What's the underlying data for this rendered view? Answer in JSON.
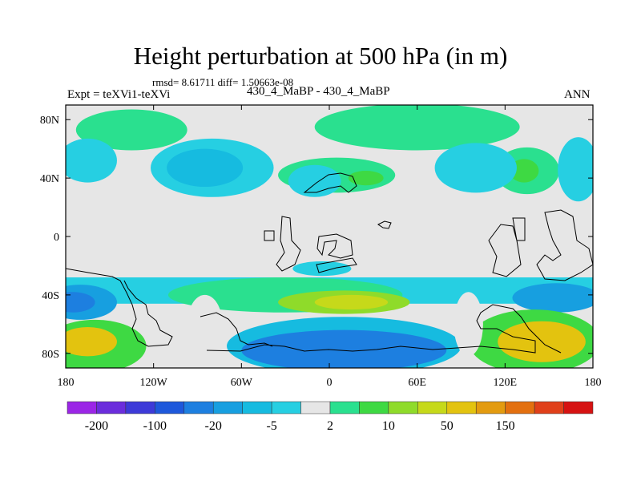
{
  "chart_data": {
    "type": "heatmap",
    "title": "Height perturbation at 500 hPa (in m)",
    "stats": "rmsd= 8.61711  diff= 1.50663e-08",
    "experiment": "Expt = teXVi1-teXVi",
    "case": "430_4_MaBP - 430_4_MaBP",
    "season": "ANN",
    "variable": "Height perturbation",
    "level_hpa": 500,
    "units": "m",
    "xlim": [
      -180,
      180
    ],
    "ylim": [
      -90,
      90
    ],
    "x_ticks": [
      {
        "value": -180,
        "label": "180"
      },
      {
        "value": -120,
        "label": "120W"
      },
      {
        "value": -60,
        "label": "60W"
      },
      {
        "value": 0,
        "label": "0"
      },
      {
        "value": 60,
        "label": "60E"
      },
      {
        "value": 120,
        "label": "120E"
      },
      {
        "value": 180,
        "label": "180"
      }
    ],
    "y_ticks": [
      {
        "value": 80,
        "label": "80N"
      },
      {
        "value": 40,
        "label": "40N"
      },
      {
        "value": 0,
        "label": "0"
      },
      {
        "value": -40,
        "label": "40S"
      },
      {
        "value": -80,
        "label": "80S"
      }
    ],
    "colorbar": {
      "colors": [
        "#9b26e6",
        "#6b2ddc",
        "#3d3ad8",
        "#1e58db",
        "#1d7fe0",
        "#179fe0",
        "#16bbe0",
        "#26cfe2",
        "#e6e6e6",
        "#2ae08f",
        "#3ed943",
        "#8fdb2a",
        "#c6d91a",
        "#e3c30f",
        "#e39b0f",
        "#e3700f",
        "#e0401a",
        "#d61212"
      ],
      "labels": [
        {
          "boundary": 1,
          "label": "-200"
        },
        {
          "boundary": 3,
          "label": "-100"
        },
        {
          "boundary": 5,
          "label": "-20"
        },
        {
          "boundary": 7,
          "label": "-5"
        },
        {
          "boundary": 9,
          "label": "2"
        },
        {
          "boundary": 11,
          "label": "10"
        },
        {
          "boundary": 13,
          "label": "50"
        },
        {
          "boundary": 15,
          "label": "150"
        }
      ]
    },
    "regions": [
      {
        "name": "nh-band",
        "level": 8,
        "lon": -180,
        "lat": 90,
        "lon2": 180,
        "lat2": -18
      },
      {
        "name": "tropical-band",
        "level": 8,
        "lon": -180,
        "lat": 10,
        "lon2": 180,
        "lat2": -25
      },
      {
        "name": "nh-pos-1",
        "level": 9,
        "lon": -135,
        "lat": 73,
        "rx": 38,
        "ry": 14
      },
      {
        "name": "nh-pos-2",
        "level": 9,
        "lon": 60,
        "lat": 75,
        "rx": 70,
        "ry": 16
      },
      {
        "name": "nh-pos-3",
        "level": 9,
        "lon": 5,
        "lat": 42,
        "rx": 40,
        "ry": 12
      },
      {
        "name": "nh-pos-4",
        "level": 10,
        "lon": 25,
        "lat": 40,
        "rx": 12,
        "ry": 5
      },
      {
        "name": "nh-pos-5",
        "level": 9,
        "lon": 135,
        "lat": 45,
        "rx": 22,
        "ry": 16
      },
      {
        "name": "nh-pos-6",
        "level": 10,
        "lon": 133,
        "lat": 45,
        "rx": 10,
        "ry": 8
      },
      {
        "name": "nh-neg-1",
        "level": 7,
        "lon": -80,
        "lat": 47,
        "rx": 42,
        "ry": 20
      },
      {
        "name": "nh-neg-2",
        "level": 6,
        "lon": -85,
        "lat": 47,
        "rx": 26,
        "ry": 13
      },
      {
        "name": "nh-neg-3",
        "level": 7,
        "lon": -165,
        "lat": 52,
        "rx": 20,
        "ry": 15
      },
      {
        "name": "nh-neg-4",
        "level": 7,
        "lon": -10,
        "lat": 38,
        "rx": 18,
        "ry": 11
      },
      {
        "name": "nh-neg-5",
        "level": 7,
        "lon": 100,
        "lat": 47,
        "rx": 28,
        "ry": 17
      },
      {
        "name": "nh-neg-6",
        "level": 7,
        "lon": 170,
        "lat": 46,
        "rx": 14,
        "ry": 22
      },
      {
        "name": "nh-neg-7",
        "level": 7,
        "lon": -5,
        "lat": -22,
        "rx": 20,
        "ry": 5
      },
      {
        "name": "sh-neg-band",
        "level": 7,
        "lon": -180,
        "lat": -28,
        "lon2": 180,
        "lat2": -46
      },
      {
        "name": "sh-pos-band",
        "level": 9,
        "lon": -30,
        "lat": -40,
        "rx": 80,
        "ry": 12
      },
      {
        "name": "sh-pos-center",
        "level": 11,
        "lon": 10,
        "lat": -45,
        "rx": 45,
        "ry": 8
      },
      {
        "name": "sh-pos-core",
        "level": 12,
        "lon": 15,
        "lat": -45,
        "rx": 25,
        "ry": 5
      },
      {
        "name": "sh-neg-west",
        "level": 5,
        "lon": -170,
        "lat": -45,
        "rx": 25,
        "ry": 12
      },
      {
        "name": "sh-neg-west-core",
        "level": 4,
        "lon": -175,
        "lat": -45,
        "rx": 15,
        "ry": 7
      },
      {
        "name": "sh-neg-east",
        "level": 5,
        "lon": 155,
        "lat": -42,
        "rx": 30,
        "ry": 10
      },
      {
        "name": "sh-neg-south",
        "level": 6,
        "lon": 10,
        "lat": -75,
        "rx": 80,
        "ry": 20
      },
      {
        "name": "sh-neg-south-core",
        "level": 4,
        "lon": 10,
        "lat": -78,
        "rx": 70,
        "ry": 14
      },
      {
        "name": "sh-pos-south-west",
        "level": 10,
        "lon": -160,
        "lat": -75,
        "rx": 35,
        "ry": 18
      },
      {
        "name": "sh-pos-south-west-core",
        "level": 13,
        "lon": -165,
        "lat": -72,
        "rx": 20,
        "ry": 10
      },
      {
        "name": "sh-pos-south-east",
        "level": 10,
        "lon": 140,
        "lat": -72,
        "rx": 45,
        "ry": 22
      },
      {
        "name": "sh-pos-south-east-core",
        "level": 13,
        "lon": 145,
        "lat": -72,
        "rx": 30,
        "ry": 14
      },
      {
        "name": "sh-white-gap",
        "level": 8,
        "lon": -85,
        "lat": -60,
        "rx": 12,
        "ry": 20
      },
      {
        "name": "sh-white-gap-2",
        "level": 8,
        "lon": 95,
        "lat": -60,
        "rx": 10,
        "ry": 22
      }
    ]
  }
}
